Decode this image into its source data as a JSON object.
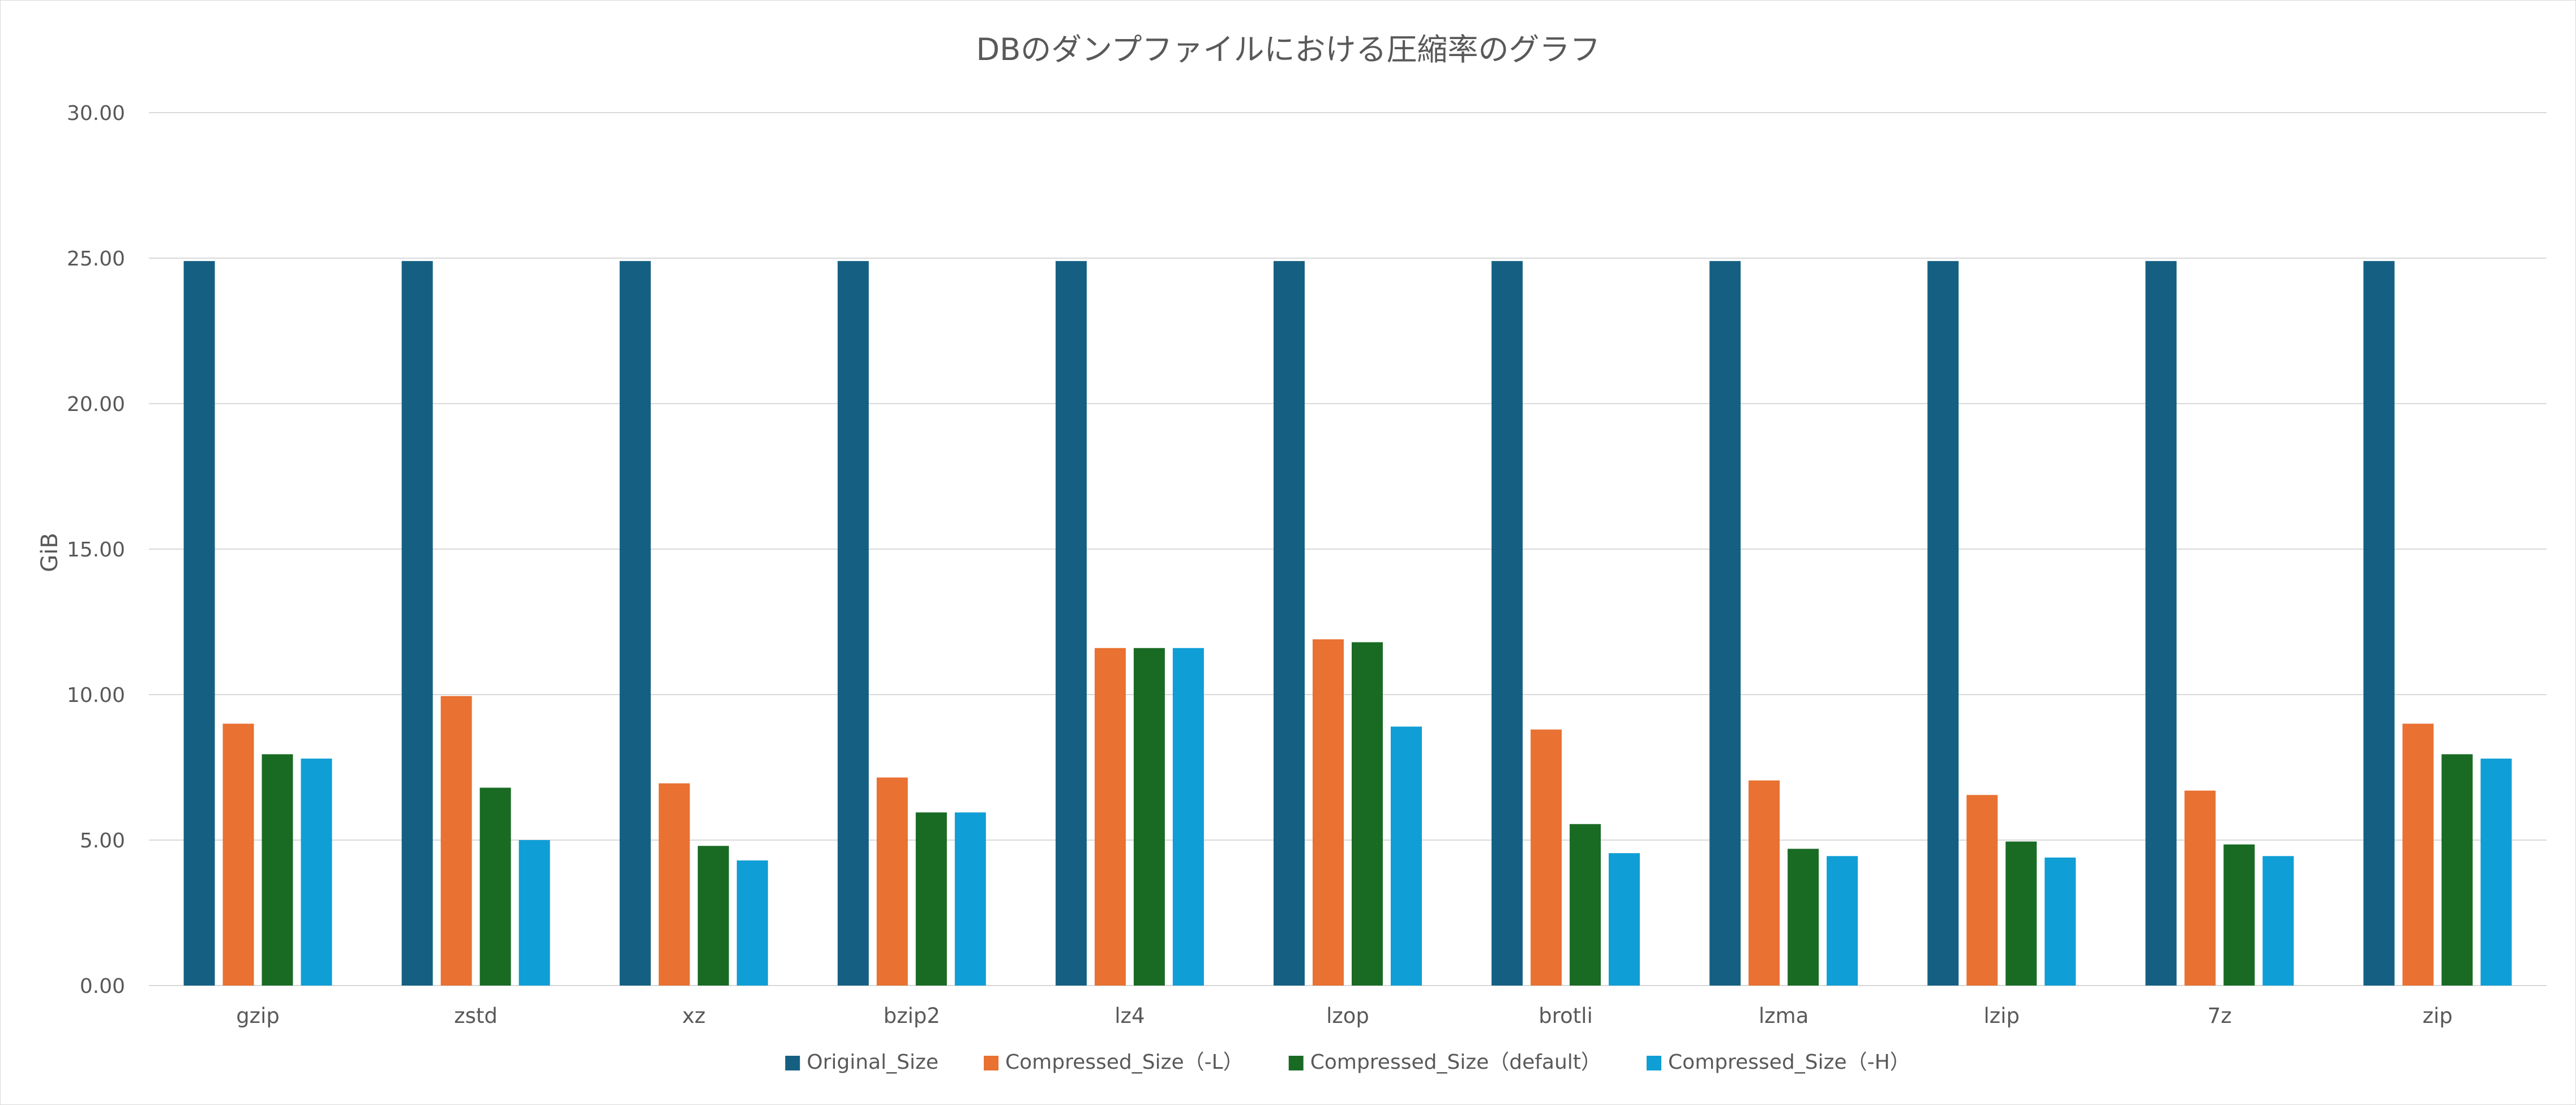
{
  "chart_data": {
    "type": "bar",
    "title": "DBのダンプファイルにおける圧縮率のグラフ",
    "xlabel": "",
    "ylabel": "GiB",
    "ylim": [
      0,
      30
    ],
    "yticks": [
      "0.00",
      "5.00",
      "10.00",
      "15.00",
      "20.00",
      "25.00",
      "30.00"
    ],
    "grid": true,
    "legend_position": "bottom",
    "categories": [
      "gzip",
      "zstd",
      "xz",
      "bzip2",
      "lz4",
      "lzop",
      "brotli",
      "lzma",
      "lzip",
      "7z",
      "zip"
    ],
    "series": [
      {
        "name": "Original_Size",
        "color": "#156082",
        "values": [
          24.9,
          24.9,
          24.9,
          24.9,
          24.9,
          24.9,
          24.9,
          24.9,
          24.9,
          24.9,
          24.9
        ]
      },
      {
        "name": "Compressed_Size（-L）",
        "color": "#E97132",
        "values": [
          9.0,
          9.95,
          6.95,
          7.15,
          11.6,
          11.9,
          8.8,
          7.05,
          6.55,
          6.7,
          9.0
        ]
      },
      {
        "name": "Compressed_Size（default）",
        "color": "#196B24",
        "values": [
          7.95,
          6.8,
          4.8,
          5.95,
          11.6,
          11.8,
          5.55,
          4.7,
          4.95,
          4.85,
          7.95
        ]
      },
      {
        "name": "Compressed_Size（-H）",
        "color": "#0F9ED5",
        "values": [
          7.8,
          5.0,
          4.3,
          5.95,
          11.6,
          8.9,
          4.55,
          4.45,
          4.4,
          4.45,
          7.8
        ]
      }
    ]
  }
}
